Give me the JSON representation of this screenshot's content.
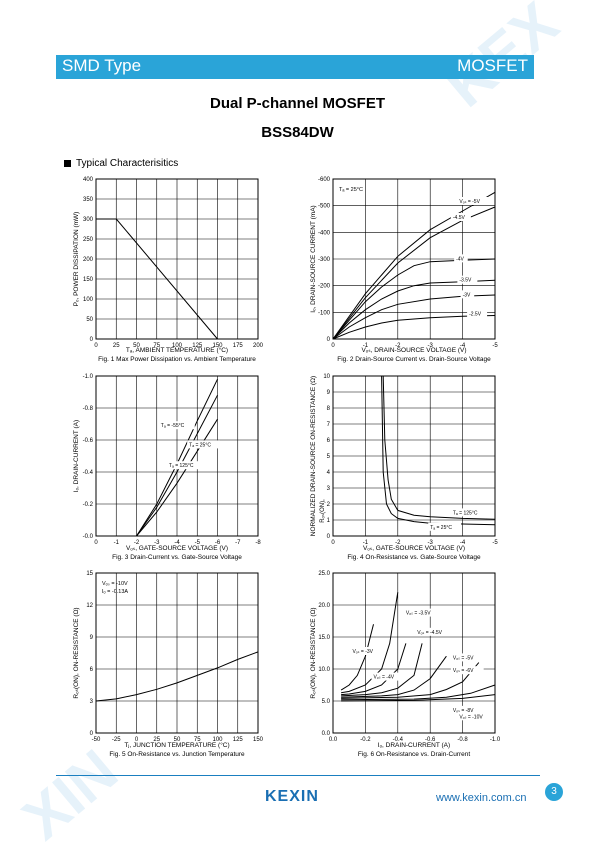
{
  "header": {
    "left": "SMD Type",
    "right": "MOSFET"
  },
  "title": "Dual P-channel MOSFET",
  "part_number": "BSS84DW",
  "section": "Typical  Characterisitics",
  "footer": {
    "logo": "KEXIN",
    "website": "www.kexin.com.cn",
    "page": "3"
  },
  "colors": {
    "accent": "#2aa4d8",
    "footer": "#1a6fb3"
  },
  "chart_data": [
    {
      "type": "line",
      "caption": "Fig. 1 Max Power Dissipation vs. Ambient Temperature",
      "xlabel": "Tₐ, AMBIENT TEMPERATURE (°C)",
      "ylabel": "Pₒ, POWER DISSIPATION (mW)",
      "xlim": [
        0,
        200
      ],
      "ylim": [
        0,
        400
      ],
      "xticks": [
        "0",
        "25",
        "50",
        "75",
        "100",
        "125",
        "150",
        "175",
        "200"
      ],
      "yticks": [
        "0",
        "50",
        "100",
        "150",
        "200",
        "250",
        "300",
        "350",
        "400"
      ],
      "series": [
        {
          "x": [
            0,
            25,
            150
          ],
          "y": [
            300,
            300,
            0
          ]
        }
      ]
    },
    {
      "type": "line",
      "caption": "Fig. 2 Drain-Source Current vs. Drain-Source Voltage",
      "xlabel": "Vₒₛ, DRAIN-SOURCE VOLTAGE (V)",
      "ylabel": "Iₒ, DRAIN-SOURCE CURRENT (mA)",
      "xlim": [
        0,
        -5
      ],
      "ylim": [
        0,
        -600
      ],
      "xticks": [
        "0",
        "-1",
        "-2",
        "-3",
        "-4",
        "-5"
      ],
      "yticks": [
        "0",
        "-100",
        "-200",
        "-300",
        "-400",
        "-500",
        "-600"
      ],
      "annotations": [
        "Tₐ = 25°C"
      ],
      "series": [
        {
          "name": "Vₒₛ = -5V",
          "x": [
            0,
            -1,
            -2,
            -3,
            -4,
            -5
          ],
          "y": [
            0,
            -170,
            -310,
            -410,
            -480,
            -550
          ]
        },
        {
          "name": "-4.5V",
          "x": [
            0,
            -1,
            -2,
            -3,
            -4,
            -5
          ],
          "y": [
            0,
            -155,
            -285,
            -380,
            -445,
            -495
          ]
        },
        {
          "name": "-4V",
          "x": [
            0,
            -0.5,
            -1,
            -1.5,
            -2,
            -2.5,
            -3,
            -4,
            -5
          ],
          "y": [
            0,
            -70,
            -140,
            -195,
            -240,
            -275,
            -290,
            -295,
            -300
          ]
        },
        {
          "name": "-3.5V",
          "x": [
            0,
            -0.5,
            -1,
            -1.5,
            -2,
            -2.5,
            -3,
            -4,
            -5
          ],
          "y": [
            0,
            -60,
            -110,
            -150,
            -180,
            -200,
            -210,
            -215,
            -220
          ]
        },
        {
          "name": "-3V",
          "x": [
            0,
            -0.5,
            -1,
            -1.5,
            -2,
            -3,
            -4,
            -5
          ],
          "y": [
            0,
            -45,
            -80,
            -110,
            -130,
            -150,
            -160,
            -165
          ]
        },
        {
          "name": "-2.5V",
          "x": [
            0,
            -0.5,
            -1,
            -1.5,
            -2,
            -3,
            -4,
            -5
          ],
          "y": [
            0,
            -25,
            -45,
            -60,
            -70,
            -80,
            -85,
            -88
          ]
        }
      ],
      "label_texts": [
        "Vₒₛ = -5V",
        "-4.5V",
        "-4V",
        "-3.5V",
        "-3V",
        "-2.5V"
      ]
    },
    {
      "type": "line",
      "caption": "Fig. 3 Drain-Current vs. Gate-Source Voltage",
      "xlabel": "Vₒₛ, GATE-SOURCE VOLTAGE (V)",
      "ylabel": "Iₒ, DRAIN-CURRENT (A)",
      "xlim": [
        0,
        -8
      ],
      "ylim": [
        0,
        -1.0
      ],
      "xticks": [
        "0",
        "-1",
        "-2",
        "-3",
        "-4",
        "-5",
        "-6",
        "-7",
        "-8"
      ],
      "yticks": [
        "-0.0",
        "-0.2",
        "-0.4",
        "-0.6",
        "-0.8",
        "-1.0"
      ],
      "series": [
        {
          "name": "Tₐ = -55°C",
          "x": [
            -2,
            -3,
            -4,
            -5,
            -6
          ],
          "y": [
            0,
            -0.2,
            -0.45,
            -0.72,
            -0.98
          ]
        },
        {
          "name": "Tₐ = 25°C",
          "x": [
            -2,
            -3,
            -4,
            -5,
            -6
          ],
          "y": [
            0,
            -0.18,
            -0.4,
            -0.64,
            -0.88
          ]
        },
        {
          "name": "Tₐ = 125°C",
          "x": [
            -2,
            -3,
            -4,
            -5,
            -6
          ],
          "y": [
            0,
            -0.15,
            -0.33,
            -0.53,
            -0.73
          ]
        }
      ],
      "label_texts": [
        "Tₐ = -55°C",
        "Tₐ = 25°C",
        "Tₐ = 125°C"
      ]
    },
    {
      "type": "line",
      "caption": "Fig. 4 On-Resistance vs. Gate-Source Voltage",
      "xlabel": "Vₒₛ, GATE-SOURCE VOLTAGE (V)",
      "ylabel": "NORMALIZED DRAIN-SOURCE ON-RESISTANCE (Ω)",
      "ylabel_prefix": "Rₒₛ(ON),",
      "xlim": [
        0,
        -5
      ],
      "ylim": [
        0,
        10
      ],
      "xticks": [
        "0",
        "-1",
        "-2",
        "-3",
        "-4",
        "-5"
      ],
      "yticks": [
        "0",
        "1",
        "2",
        "3",
        "4",
        "5",
        "6",
        "7",
        "8",
        "9",
        "10"
      ],
      "series": [
        {
          "name": "Tₐ = 125°C",
          "x": [
            -1.55,
            -1.6,
            -1.7,
            -1.8,
            -2,
            -2.5,
            -3,
            -4,
            -5
          ],
          "y": [
            10,
            6,
            3.5,
            2.3,
            1.6,
            1.3,
            1.2,
            1.1,
            1.05
          ]
        },
        {
          "name": "Tₐ = 25°C",
          "x": [
            -1.5,
            -1.55,
            -1.65,
            -1.8,
            -2,
            -2.5,
            -3,
            -4,
            -5
          ],
          "y": [
            10,
            4,
            2,
            1.4,
            1.1,
            0.9,
            0.8,
            0.75,
            0.7
          ]
        }
      ],
      "label_texts": [
        "Tₐ = 125°C",
        "Tₐ = 25°C"
      ]
    },
    {
      "type": "line",
      "caption": "Fig. 5 On-Resistance vs. Junction Temperature",
      "xlabel": "Tⱼ, JUNCTION TEMPERATURE (°C)",
      "ylabel": "Rₒₛ(ON), ON-RESISTANCE (Ω)",
      "xlim": [
        -50,
        150
      ],
      "ylim": [
        0,
        15
      ],
      "xticks": [
        "-50",
        "-25",
        "0",
        "25",
        "50",
        "75",
        "100",
        "125",
        "150"
      ],
      "yticks": [
        "0",
        "3",
        "6",
        "9",
        "12",
        "15"
      ],
      "annotations": [
        "Vₒₛ = -10V",
        "Iₒ = -0.13A"
      ],
      "series": [
        {
          "x": [
            -50,
            -25,
            0,
            25,
            50,
            75,
            100,
            125,
            150
          ],
          "y": [
            3.0,
            3.2,
            3.6,
            4.1,
            4.7,
            5.4,
            6.1,
            6.9,
            7.6
          ]
        }
      ]
    },
    {
      "type": "line",
      "caption": "Fig. 6 On-Resistance vs. Drain-Current",
      "xlabel": "Iₒ, DRAIN-CURRENT (A)",
      "ylabel": "Rₒₛ(ON), ON-RESISTANCE (Ω)",
      "xlim": [
        0,
        -1.0
      ],
      "ylim": [
        0,
        25
      ],
      "xticks": [
        "0.0",
        "-0.2",
        "-0.4",
        "-0.6",
        "-0.8",
        "-1.0"
      ],
      "yticks": [
        "0.0",
        "5.0",
        "10.0",
        "15.0",
        "20.0",
        "25.0"
      ],
      "series": [
        {
          "name": "Vₒₛ = -3V",
          "x": [
            -0.05,
            -0.1,
            -0.15,
            -0.2,
            -0.25
          ],
          "y": [
            6.7,
            7.5,
            9,
            12,
            17
          ]
        },
        {
          "name": "Vₒₛ = -3.5V",
          "x": [
            -0.05,
            -0.1,
            -0.2,
            -0.3,
            -0.35,
            -0.4
          ],
          "y": [
            6.3,
            6.5,
            7.5,
            10,
            14,
            22
          ]
        },
        {
          "name": "Vₒₛ = -4V",
          "x": [
            -0.05,
            -0.1,
            -0.2,
            -0.3,
            -0.4,
            -0.45
          ],
          "y": [
            6.0,
            6.1,
            6.5,
            7.5,
            10,
            14
          ]
        },
        {
          "name": "Vₒₛ = -4.5V",
          "x": [
            -0.05,
            -0.2,
            -0.3,
            -0.4,
            -0.5,
            -0.55
          ],
          "y": [
            5.8,
            6.0,
            6.3,
            7,
            9,
            14
          ]
        },
        {
          "name": "Vₒₛ = -5V",
          "x": [
            -0.05,
            -0.3,
            -0.4,
            -0.5,
            -0.6,
            -0.7
          ],
          "y": [
            5.6,
            5.8,
            6,
            6.7,
            8.5,
            12
          ]
        },
        {
          "name": "Vₒₛ = -6V",
          "x": [
            -0.05,
            -0.4,
            -0.6,
            -0.7,
            -0.8,
            -0.9
          ],
          "y": [
            5.4,
            5.6,
            6,
            6.8,
            8,
            11
          ]
        },
        {
          "name": "Vₒₛ = -8V",
          "x": [
            -0.05,
            -0.5,
            -0.7,
            -0.85,
            -1.0
          ],
          "y": [
            5.2,
            5.3,
            5.6,
            6.2,
            7.5
          ]
        },
        {
          "name": "Vₒₛ = -10V",
          "x": [
            -0.05,
            -0.5,
            -0.8,
            -1.0
          ],
          "y": [
            5.0,
            5.1,
            5.4,
            6.0
          ]
        }
      ],
      "label_texts": [
        "Vₒₛ = -3V",
        "Vₒₛ = -3.5V",
        "Vₒₛ = -4V",
        "Vₒₛ = -4.5V",
        "Vₒₛ = -5V",
        "Vₒₛ = -6V",
        "Vₒₛ = -8V",
        "Vₒₛ = -10V"
      ]
    }
  ]
}
